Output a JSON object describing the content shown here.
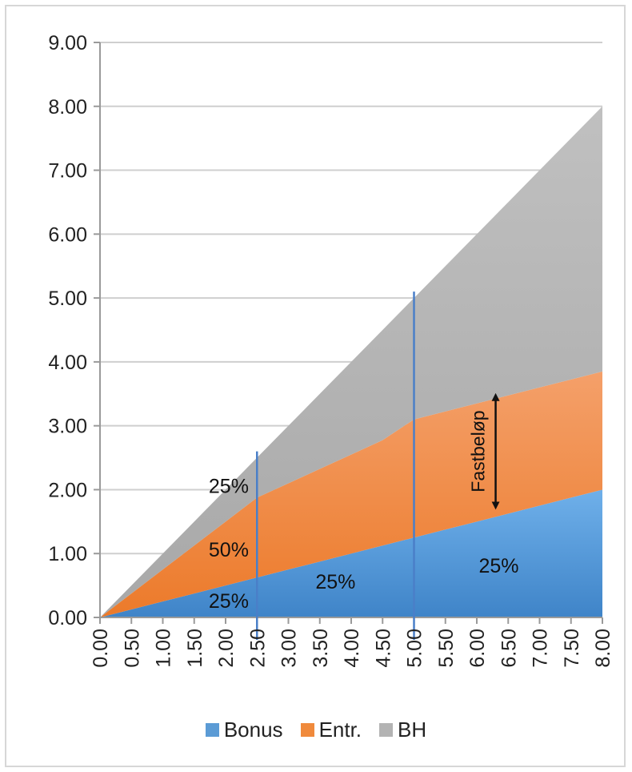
{
  "chart_data": {
    "type": "area",
    "stacked": true,
    "x": [
      0.0,
      0.5,
      1.0,
      1.5,
      2.0,
      2.5,
      3.0,
      3.5,
      4.0,
      4.5,
      5.0,
      5.5,
      6.0,
      6.5,
      7.0,
      7.5,
      8.0
    ],
    "x_tick_labels": [
      "0.00",
      "0.50",
      "1.00",
      "1.50",
      "2.00",
      "2.50",
      "3.00",
      "3.50",
      "4.00",
      "4.50",
      "5.00",
      "5.50",
      "6.00",
      "6.50",
      "7.00",
      "7.50",
      "8.00"
    ],
    "y_tick_labels": [
      "0.00",
      "1.00",
      "2.00",
      "3.00",
      "4.00",
      "5.00",
      "6.00",
      "7.00",
      "8.00",
      "9.00"
    ],
    "ylim": [
      0,
      9
    ],
    "xlim": [
      0,
      8
    ],
    "grid": "horizontal",
    "legend_position": "bottom",
    "series": [
      {
        "name": "Bonus",
        "color": "#5b9bd5",
        "values": [
          0.0,
          0.125,
          0.25,
          0.375,
          0.5,
          0.625,
          0.75,
          0.875,
          1.0,
          1.125,
          1.25,
          1.375,
          1.5,
          1.625,
          1.75,
          1.875,
          2.0
        ]
      },
      {
        "name": "Entr.",
        "color": "#f08a3c",
        "values": [
          0.0,
          0.25,
          0.5,
          0.75,
          1.0,
          1.25,
          1.35,
          1.45,
          1.55,
          1.65,
          1.85,
          1.85,
          1.85,
          1.85,
          1.85,
          1.85,
          1.85
        ]
      },
      {
        "name": "BH",
        "color": "#b3b3b3",
        "values": [
          0.0,
          0.125,
          0.25,
          0.375,
          0.5,
          0.625,
          0.9,
          1.175,
          1.45,
          1.725,
          1.9,
          2.275,
          2.65,
          3.025,
          3.4,
          3.775,
          4.15
        ]
      }
    ],
    "vertical_lines": [
      2.5,
      5.0
    ],
    "annotations": [
      {
        "text": "25%",
        "x": 2.05,
        "y": 1.95
      },
      {
        "text": "50%",
        "x": 2.05,
        "y": 0.95
      },
      {
        "text": "25%",
        "x": 2.05,
        "y": 0.15
      },
      {
        "text": "25%",
        "x": 3.75,
        "y": 0.45
      },
      {
        "text": "25%",
        "x": 6.35,
        "y": 0.7
      }
    ],
    "arrow": {
      "label": "Fastbeløp",
      "x": 6.3,
      "y_from": 1.7,
      "y_to": 3.5
    }
  }
}
